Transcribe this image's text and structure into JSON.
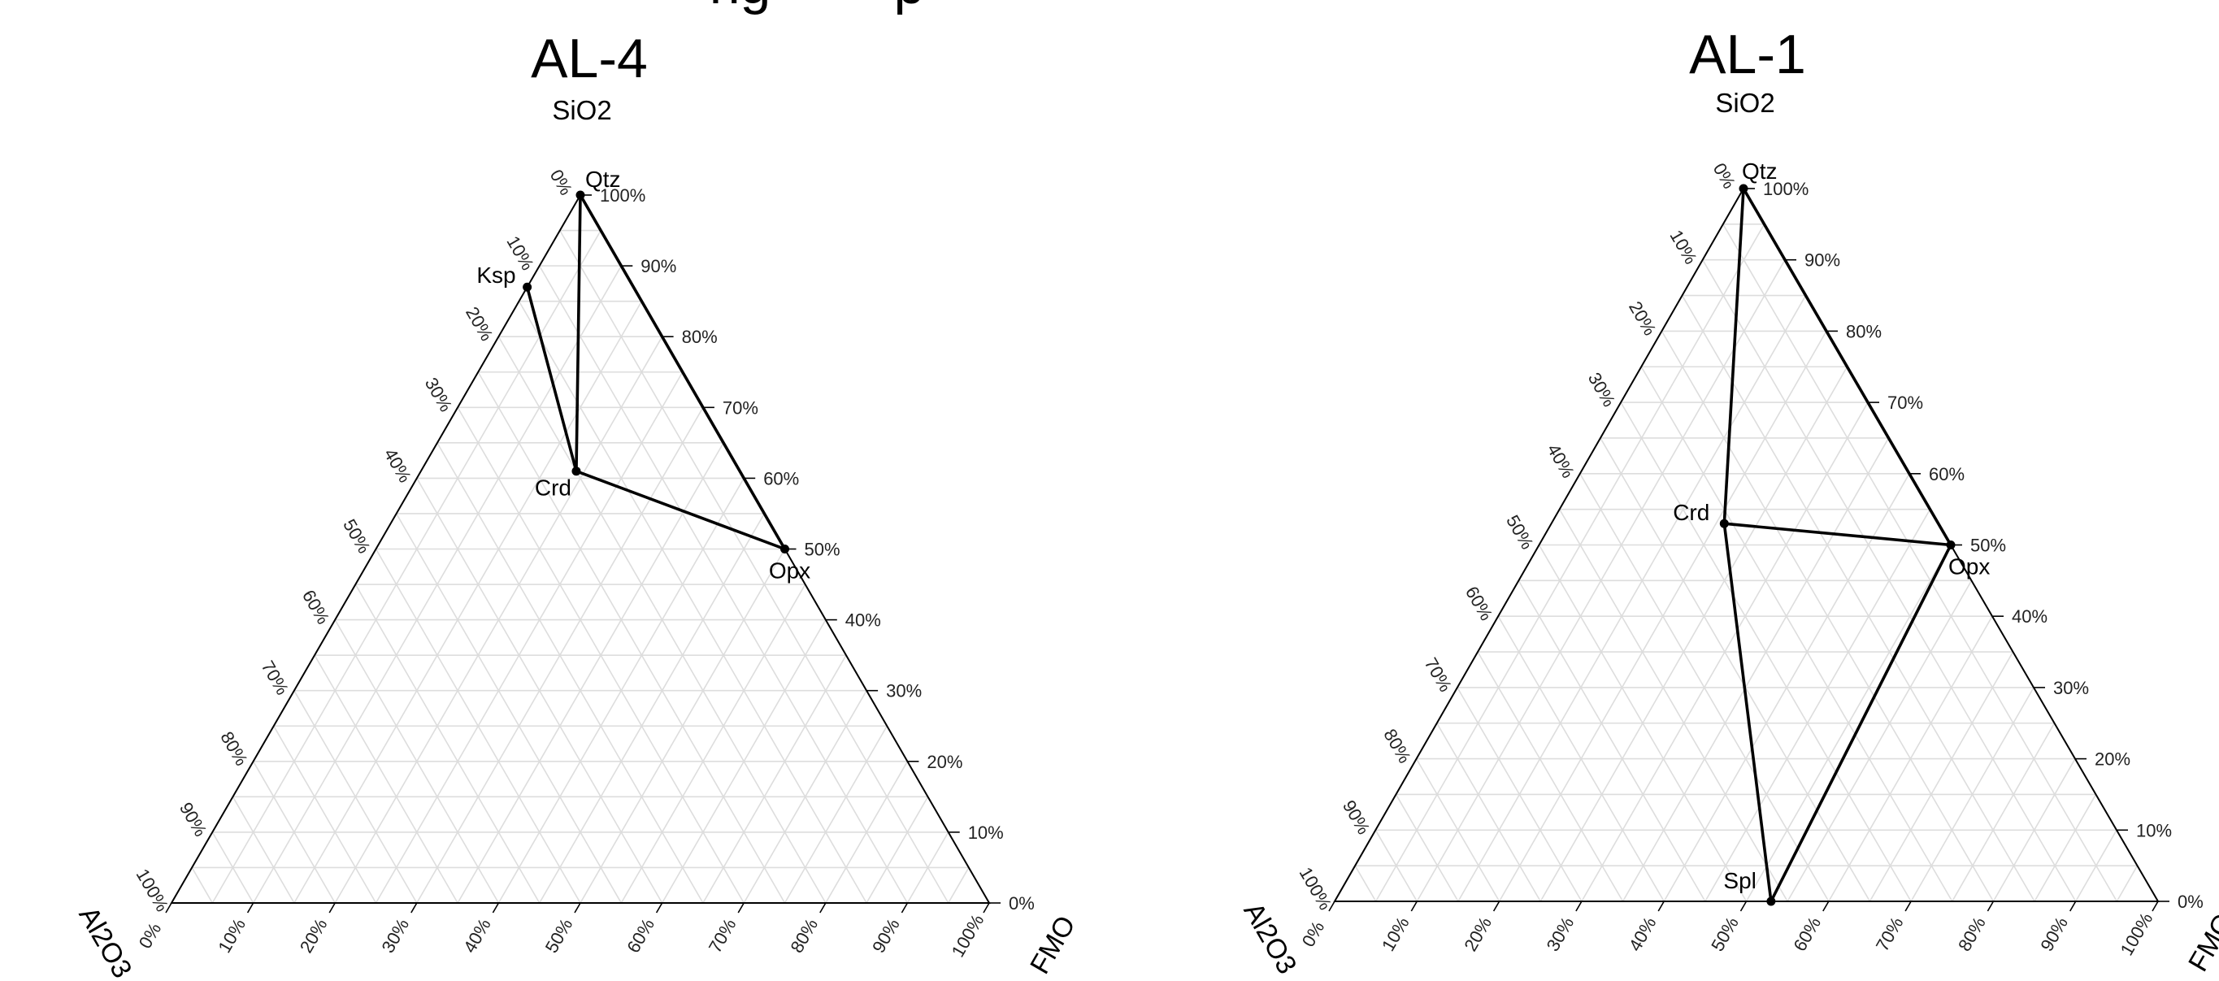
{
  "page_heading_fragment": "ng        p",
  "chart_data": [
    {
      "type": "ternary",
      "title": "AL-4",
      "axes": {
        "top": "SiO2",
        "left": "Al2O3",
        "right": "FMO"
      },
      "ticks": [
        "0%",
        "10%",
        "20%",
        "30%",
        "40%",
        "50%",
        "60%",
        "70%",
        "80%",
        "90%",
        "100%"
      ],
      "grid": true,
      "points": [
        {
          "label": "Qtz",
          "SiO2": 100,
          "Al2O3": 0,
          "FMO": 0
        },
        {
          "label": "Ksp",
          "SiO2": 87,
          "Al2O3": 13,
          "FMO": 0
        },
        {
          "label": "Crd",
          "SiO2": 61,
          "Al2O3": 20,
          "FMO": 19
        },
        {
          "label": "Opx",
          "SiO2": 50,
          "Al2O3": 0,
          "FMO": 50
        }
      ],
      "tie_lines": [
        [
          "Ksp",
          "Crd"
        ],
        [
          "Qtz",
          "Crd"
        ],
        [
          "Qtz",
          "Opx"
        ],
        [
          "Crd",
          "Opx"
        ]
      ]
    },
    {
      "type": "ternary",
      "title": "AL-1",
      "axes": {
        "top": "SiO2",
        "left": "Al2O3",
        "right": "FMO"
      },
      "ticks": [
        "0%",
        "10%",
        "20%",
        "30%",
        "40%",
        "50%",
        "60%",
        "70%",
        "80%",
        "90%",
        "100%"
      ],
      "grid": true,
      "points": [
        {
          "label": "Qtz",
          "SiO2": 100,
          "Al2O3": 0,
          "FMO": 0
        },
        {
          "label": "Crd",
          "SiO2": 53,
          "Al2O3": 26,
          "FMO": 21
        },
        {
          "label": "Opx",
          "SiO2": 50,
          "Al2O3": 0,
          "FMO": 50
        },
        {
          "label": "Spl",
          "SiO2": 0,
          "Al2O3": 47,
          "FMO": 53
        }
      ],
      "tie_lines": [
        [
          "Qtz",
          "Crd"
        ],
        [
          "Qtz",
          "Opx"
        ],
        [
          "Crd",
          "Opx"
        ],
        [
          "Crd",
          "Spl"
        ],
        [
          "Spl",
          "Opx"
        ]
      ]
    }
  ]
}
